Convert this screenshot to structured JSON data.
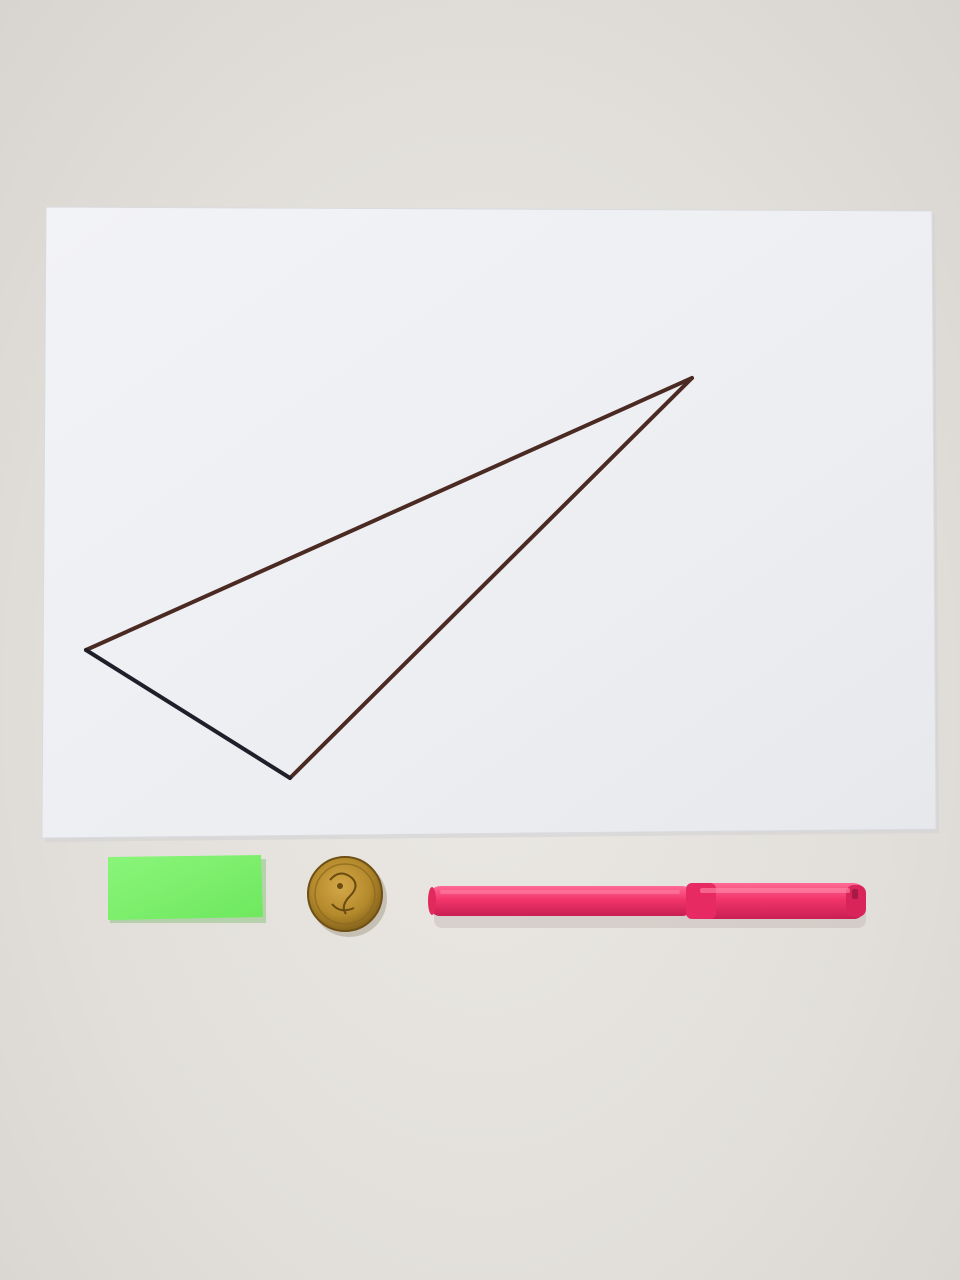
{
  "scene": {
    "description_name": "photo-of-drawn-triangle-with-reference-objects",
    "colors": {
      "background": "#e4e1dc",
      "paper": "#eef0f3",
      "triangle_stroke": "#4a2a22",
      "triangle_stroke_dark": "#1f1f2a",
      "sticky_note": "#7cf06a",
      "coin_gold": "#b58a2c",
      "coin_dark": "#7a5a18",
      "marker_body": "#f2356a",
      "marker_cap": "#e82a62"
    },
    "objects": [
      {
        "name": "paper-sheet",
        "icon": "paper"
      },
      {
        "name": "drawn-triangle",
        "icon": "triangle"
      },
      {
        "name": "green-sticky-note",
        "icon": "rectangle"
      },
      {
        "name": "coin",
        "icon": "coin"
      },
      {
        "name": "pink-marker",
        "icon": "marker"
      }
    ]
  }
}
